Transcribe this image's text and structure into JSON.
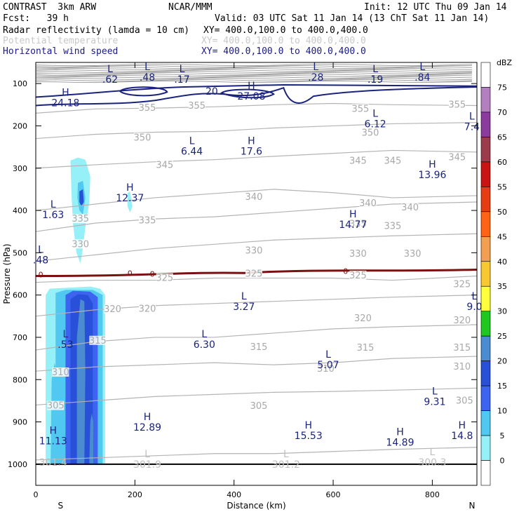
{
  "header": {
    "model": "CONTRAST  3km ARW",
    "center": "NCAR/MMM",
    "init": "Init: 12 UTC Thu 09 Jan 14",
    "fcst": "Fcst:   39 h",
    "valid": "Valid: 03 UTC Sat 11 Jan 14 (13 ChT Sat 11 Jan 14)",
    "fields": [
      {
        "name": "Radar reflectivity (lamda = 10 cm)",
        "xy": "XY= 400.0,100.0 to 400.0,400.0"
      },
      {
        "name": "Potential temperature",
        "xy": "XY= 400.0,100.0 to 400.0,400.0"
      },
      {
        "name": "Horizontal wind speed",
        "xy": "XY= 400.0,100.0 to 400.0,400.0"
      }
    ]
  },
  "chart_data": {
    "type": "cross-section contour",
    "xlabel": "Distance (km)",
    "ylabel": "Pressure (hPa)",
    "xlim": [
      0,
      890
    ],
    "ylim": [
      1050,
      50
    ],
    "x_ticks": [
      "0",
      "200",
      "400",
      "600",
      "800"
    ],
    "y_ticks": [
      "100",
      "200",
      "300",
      "400",
      "500",
      "600",
      "700",
      "800",
      "900",
      "1000"
    ],
    "x_end_labels": {
      "left": "S",
      "right": "N"
    },
    "colorbar": {
      "unit": "dBZ",
      "levels": [
        "75",
        "70",
        "65",
        "60",
        "55",
        "50",
        "45",
        "40",
        "35",
        "30",
        "25",
        "20",
        "15",
        "10",
        "5",
        "0"
      ],
      "colors": [
        "#ffffff",
        "#b47fc0",
        "#8c3a9e",
        "#9a3c4c",
        "#c81414",
        "#e63c14",
        "#ff6414",
        "#f0a050",
        "#f8c832",
        "#ffff3c",
        "#1ec81e",
        "#4a8ccf",
        "#2850d8",
        "#3c64f0",
        "#50c8f0",
        "#96f0f8",
        "#ffffff"
      ]
    },
    "theta_isentropes": [
      {
        "value": 355,
        "p": [
          170,
          160,
          158,
          155,
          150,
          147,
          150,
          152
        ]
      },
      {
        "value": 350,
        "p": [
          230,
          220,
          215,
          213,
          205,
          200,
          195,
          192
        ]
      },
      {
        "value": 345,
        "p": [
          300,
          292,
          285,
          280,
          272,
          265,
          258,
          262
        ]
      },
      {
        "value": 340,
        "p": [
          400,
          385,
          370,
          360,
          350,
          358,
          370,
          365
        ]
      },
      {
        "value": 335,
        "p": [
          450,
          430,
          420,
          415,
          405,
          395,
          385,
          380
        ]
      },
      {
        "value": 330,
        "p": [
          520,
          505,
          490,
          480,
          470,
          465,
          460,
          455
        ]
      },
      {
        "value": 325,
        "p": [
          570,
          565,
          565,
          560,
          560,
          560,
          565,
          555
        ]
      },
      {
        "value": 320,
        "p": [
          650,
          635,
          625,
          620,
          615,
          610,
          605,
          600
        ]
      },
      {
        "value": 315,
        "p": [
          730,
          710,
          700,
          700,
          690,
          680,
          675,
          670
        ]
      },
      {
        "value": 310,
        "p": [
          780,
          770,
          765,
          760,
          765,
          760,
          750,
          745
        ]
      },
      {
        "value": 305,
        "p": [
          860,
          850,
          840,
          835,
          830,
          828,
          825,
          820
        ]
      },
      {
        "value": 301,
        "p": [
          990,
          985,
          980,
          975,
          975,
          970,
          965,
          960
        ]
      }
    ],
    "theta_labels": [
      {
        "text": "355",
        "x": 225,
        "p": 158
      },
      {
        "text": "355",
        "x": 325,
        "p": 153
      },
      {
        "text": "355",
        "x": 655,
        "p": 160
      },
      {
        "text": "355",
        "x": 850,
        "p": 150
      },
      {
        "text": "350",
        "x": 215,
        "p": 228
      },
      {
        "text": "350",
        "x": 675,
        "p": 217
      },
      {
        "text": "345",
        "x": 260,
        "p": 293
      },
      {
        "text": "345",
        "x": 650,
        "p": 283
      },
      {
        "text": "345",
        "x": 720,
        "p": 283
      },
      {
        "text": "345",
        "x": 850,
        "p": 275
      },
      {
        "text": "340",
        "x": 440,
        "p": 368
      },
      {
        "text": "340",
        "x": 670,
        "p": 383
      },
      {
        "text": "340",
        "x": 755,
        "p": 393
      },
      {
        "text": "335",
        "x": 90,
        "p": 420
      },
      {
        "text": "335",
        "x": 225,
        "p": 424
      },
      {
        "text": "335",
        "x": 650,
        "p": 432
      },
      {
        "text": "335",
        "x": 720,
        "p": 437
      },
      {
        "text": "330",
        "x": 90,
        "p": 480
      },
      {
        "text": "330",
        "x": 440,
        "p": 495
      },
      {
        "text": "330",
        "x": 650,
        "p": 503
      },
      {
        "text": "330",
        "x": 760,
        "p": 503
      },
      {
        "text": "325",
        "x": 260,
        "p": 560
      },
      {
        "text": "325",
        "x": 440,
        "p": 550
      },
      {
        "text": "325",
        "x": 650,
        "p": 554
      },
      {
        "text": "325",
        "x": 860,
        "p": 575
      },
      {
        "text": "320",
        "x": 155,
        "p": 634
      },
      {
        "text": "320",
        "x": 225,
        "p": 633
      },
      {
        "text": "320",
        "x": 660,
        "p": 655
      },
      {
        "text": "320",
        "x": 860,
        "p": 660
      },
      {
        "text": "315",
        "x": 125,
        "p": 708
      },
      {
        "text": "315",
        "x": 450,
        "p": 723
      },
      {
        "text": "315",
        "x": 665,
        "p": 725
      },
      {
        "text": "315",
        "x": 860,
        "p": 725
      },
      {
        "text": "310",
        "x": 50,
        "p": 783
      },
      {
        "text": "310",
        "x": 585,
        "p": 775
      },
      {
        "text": "310",
        "x": 860,
        "p": 770
      },
      {
        "text": "305",
        "x": 40,
        "p": 862
      },
      {
        "text": "305",
        "x": 450,
        "p": 863
      },
      {
        "text": "305",
        "x": 865,
        "p": 850
      }
    ],
    "wind_highs_lows": [
      {
        "mark": "L",
        "value": ".62",
        "x": 150,
        "p": 85
      },
      {
        "mark": "L",
        "value": ".48",
        "x": 225,
        "p": 80
      },
      {
        "mark": "L",
        "value": ".17",
        "x": 295,
        "p": 85
      },
      {
        "mark": "L",
        "value": ".28",
        "x": 565,
        "p": 80
      },
      {
        "mark": "L",
        "value": ".19",
        "x": 685,
        "p": 85
      },
      {
        "mark": "L",
        "value": ".84",
        "x": 780,
        "p": 80
      },
      {
        "mark": "H",
        "value": "24.18",
        "x": 60,
        "p": 140
      },
      {
        "mark": "H",
        "value": "27.08",
        "x": 435,
        "p": 125
      },
      {
        "mark": "L",
        "value": "6.12",
        "x": 685,
        "p": 190
      },
      {
        "mark": "L",
        "value": "7.4",
        "x": 880,
        "p": 197
      },
      {
        "mark": "L",
        "value": "6.44",
        "x": 315,
        "p": 255
      },
      {
        "mark": "H",
        "value": "17.6",
        "x": 435,
        "p": 255
      },
      {
        "mark": "H",
        "value": "13.96",
        "x": 800,
        "p": 310
      },
      {
        "mark": "H",
        "value": "12.37",
        "x": 190,
        "p": 365
      },
      {
        "mark": "L",
        "value": "1.63",
        "x": 35,
        "p": 405
      },
      {
        "mark": "H",
        "value": "14.77",
        "x": 640,
        "p": 428
      },
      {
        "mark": "L",
        "value": ".48",
        "x": 10,
        "p": 512
      },
      {
        "mark": "L",
        "value": "3.27",
        "x": 420,
        "p": 622
      },
      {
        "mark": "L",
        "value": "9.0",
        "x": 885,
        "p": 622
      },
      {
        "mark": "L",
        "value": ".53",
        "x": 60,
        "p": 712
      },
      {
        "mark": "L",
        "value": "6.30",
        "x": 340,
        "p": 712
      },
      {
        "mark": "L",
        "value": "5.07",
        "x": 590,
        "p": 760
      },
      {
        "mark": "L",
        "value": "9.31",
        "x": 805,
        "p": 847
      },
      {
        "mark": "H",
        "value": "12.89",
        "x": 225,
        "p": 907
      },
      {
        "mark": "H",
        "value": "15.53",
        "x": 550,
        "p": 927
      },
      {
        "mark": "H",
        "value": "14.89",
        "x": 735,
        "p": 943
      },
      {
        "mark": "H",
        "value": "14.8",
        "x": 860,
        "p": 927
      },
      {
        "mark": "H",
        "value": "11.13",
        "x": 35,
        "p": 940
      }
    ],
    "surface_labels": [
      {
        "mark": "",
        "value": "301.4",
        "x": 35,
        "p": 990
      },
      {
        "mark": "L",
        "value": "301.9",
        "x": 225,
        "p": 995
      },
      {
        "mark": "L",
        "value": "301.2",
        "x": 505,
        "p": 995
      },
      {
        "mark": "L",
        "value": "300.3",
        "x": 800,
        "p": 990
      }
    ],
    "wind_contour_20": {
      "label": "20"
    },
    "freezing_level": {
      "label": "0",
      "p_start": 555,
      "p_end": 540
    }
  }
}
